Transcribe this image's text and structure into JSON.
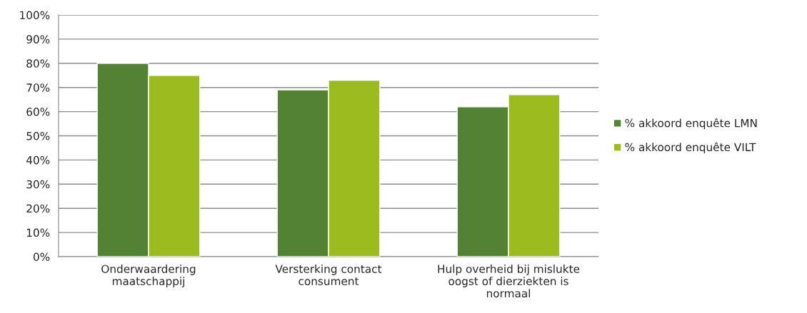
{
  "chart_data": {
    "type": "bar",
    "categories": [
      "Onderwaardering\nmaatschappij",
      "Versterking contact\nconsument",
      "Hulp overheid bij mislukte\noogst of dierziekten is\nnormaal"
    ],
    "series": [
      {
        "name": "% akkoord enquête LMN",
        "color": "#548235",
        "values": [
          80,
          69,
          62
        ]
      },
      {
        "name": "% akkoord enquête VILT",
        "color": "#9bbb1e",
        "values": [
          75,
          73,
          67
        ]
      }
    ],
    "ylim": [
      0,
      100
    ],
    "yticks": [
      {
        "value": 0,
        "label": "0%"
      },
      {
        "value": 10,
        "label": "10%"
      },
      {
        "value": 20,
        "label": "20%"
      },
      {
        "value": 30,
        "label": "30%"
      },
      {
        "value": 40,
        "label": "40%"
      },
      {
        "value": 50,
        "label": "50%"
      },
      {
        "value": 60,
        "label": "60%"
      },
      {
        "value": 70,
        "label": "70%"
      },
      {
        "value": 80,
        "label": "80%"
      },
      {
        "value": 90,
        "label": "90%"
      },
      {
        "value": 100,
        "label": "100%"
      }
    ],
    "grid": "y",
    "legend": "right"
  }
}
